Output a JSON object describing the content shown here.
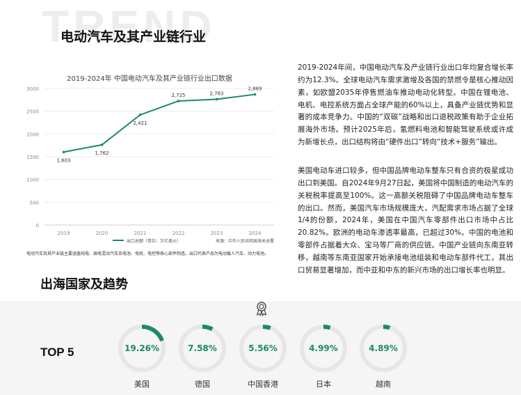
{
  "watermark": "TREND",
  "title": "电动汽车及其产业链行业",
  "chart_data": {
    "type": "line",
    "title": "2019-2024年 中国电动汽车及其产业链行业出口数据",
    "categories": [
      "2019",
      "2020",
      "2021",
      "2022",
      "2023",
      "2024"
    ],
    "series": [
      {
        "name": "出口总额（单位：万亿美元）",
        "values": [
          1603,
          1762,
          2421,
          2725,
          2763,
          2869
        ]
      }
    ],
    "data_labels": [
      "1,603",
      "1,762",
      "2,421",
      "2,725",
      "2,763",
      "2,869"
    ],
    "ylim": [
      0,
      3000
    ],
    "yticks": [
      0,
      500,
      1000,
      1500,
      2000,
      2500,
      3000
    ],
    "grid": true,
    "legend_position": "bottom-left",
    "color": "#1a8a63",
    "source": "来源：中华人民共和国海关总署"
  },
  "chart_note": "电动汽车及其产业链主要涵盖纯电、插电混动汽车及电池、电机、电控等核心部件制造。出口代表产品为电动载人汽车、动力电池。",
  "paragraph1": "2019-2024年间，中国电动汽车及产业链行业出口年均复合增长率约为12.3%。全球电动汽车需求激增及各国的禁燃令是核心推动因素，如欧盟2035年停售燃油车推动电动化转型。中国在锂电池、电机、电控系统方面占全球产能的60%以上，具备产业链优势和显著的成本竞争力。中国的“双碳”战略和出口退税政策有助于企业拓展海外市场。预计2025年后，氢燃料电池和智能驾驶系统或许成为新增长点，出口结构将由“硬件出口”转向“技术+服务”输出。",
  "paragraph2": "美国电动车进口较多，但中国品牌电动车整车只有合资的极星成功出口到美国。自2024年9月27日起，美国将中国制造的电动汽车的关税税率提高至100%。这一高额关税阻碍了中国品牌电动车整车的出口。然而，美国汽车市场规模庞大，汽配需求市场占据了全球1/4的份额，2024年，美国在中国汽车零部件出口市场中占比20.82%。欧洲的电动车渗透率最高，已超过30%。中国的电池和零部件占据着大众、宝马等厂商的供应链。中国产业链向东南亚转移，越南等东南亚国家开始承接电池组装和电动车部件代工，其出口贸易显著增加，而中亚和中东的新兴市场的出口增长率也明显。",
  "section_title": "出海国家及趋势",
  "top5_label": "TOP 5",
  "medal_icon": "medal-icon",
  "accent_color": "#1a8a63",
  "ring_color": "#e6e6e6",
  "countries": [
    {
      "name": "美国",
      "value": "19.26%",
      "fraction": 0.1926
    },
    {
      "name": "德国",
      "value": "7.58%",
      "fraction": 0.0758
    },
    {
      "name": "中国香港",
      "value": "5.56%",
      "fraction": 0.0556
    },
    {
      "name": "日本",
      "value": "4.99%",
      "fraction": 0.0499
    },
    {
      "name": "越南",
      "value": "4.89%",
      "fraction": 0.0489
    }
  ]
}
